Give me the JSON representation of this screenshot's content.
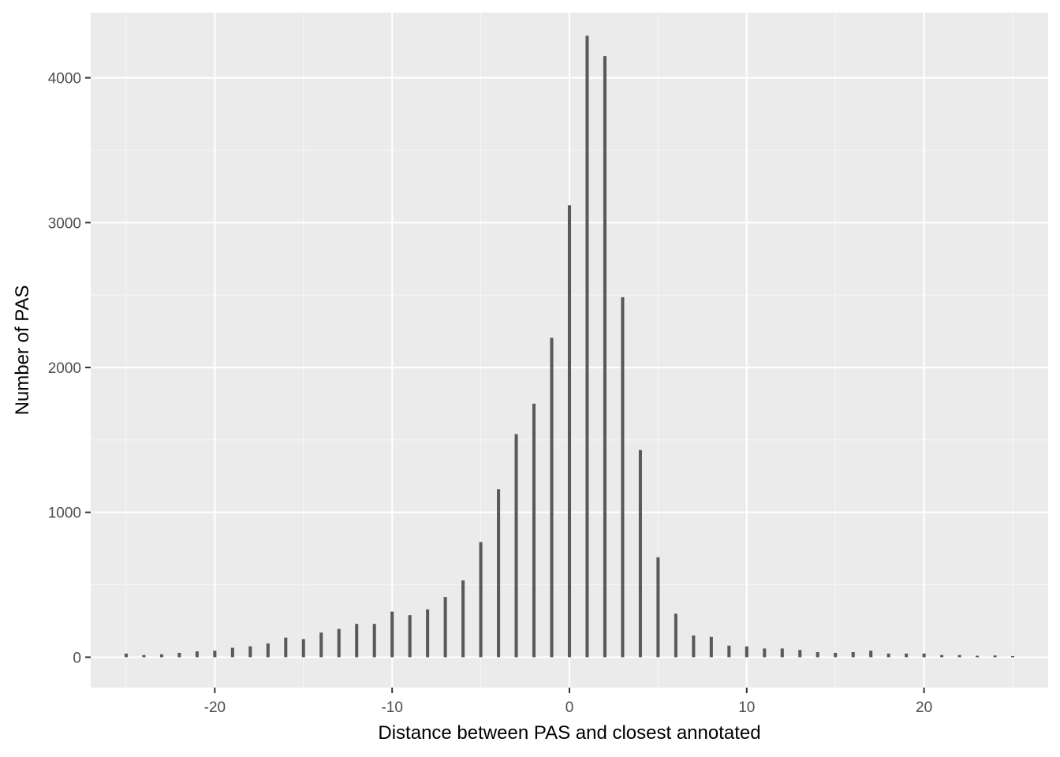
{
  "chart_data": {
    "type": "bar",
    "title": "",
    "xlabel": "Distance between PAS and closest annotated",
    "ylabel": "Number of PAS",
    "xlim": [
      -27,
      27
    ],
    "ylim": [
      -210,
      4450
    ],
    "xticks": [
      -20,
      -10,
      0,
      10,
      20
    ],
    "yticks": [
      0,
      1000,
      2000,
      3000,
      4000
    ],
    "x_tick_labels": [
      "-20",
      "-10",
      "0",
      "10",
      "20"
    ],
    "y_tick_labels": [
      "0",
      "1000",
      "2000",
      "3000",
      "4000"
    ],
    "grid": true,
    "x": [
      -25,
      -24,
      -23,
      -22,
      -21,
      -20,
      -19,
      -18,
      -17,
      -16,
      -15,
      -14,
      -13,
      -12,
      -11,
      -10,
      -9,
      -8,
      -7,
      -6,
      -5,
      -4,
      -3,
      -2,
      -1,
      0,
      1,
      2,
      3,
      4,
      5,
      6,
      7,
      8,
      9,
      10,
      11,
      12,
      13,
      14,
      15,
      16,
      17,
      18,
      19,
      20,
      21,
      22,
      23,
      24,
      25
    ],
    "values": [
      25,
      15,
      20,
      30,
      40,
      45,
      65,
      75,
      95,
      135,
      125,
      170,
      195,
      230,
      230,
      315,
      290,
      330,
      415,
      530,
      795,
      1160,
      1540,
      1750,
      2205,
      3120,
      4290,
      4150,
      2485,
      1430,
      690,
      300,
      150,
      140,
      80,
      75,
      60,
      60,
      50,
      35,
      30,
      35,
      45,
      25,
      25,
      25,
      15,
      15,
      10,
      12,
      8
    ]
  },
  "colors": {
    "panel_background": "#ebebeb",
    "grid_major": "#ffffff",
    "grid_minor": "#f6f6f6",
    "bar_fill": "#595959",
    "tick_mark": "#333333",
    "tick_text": "#4d4d4d",
    "title_text": "#000000"
  }
}
